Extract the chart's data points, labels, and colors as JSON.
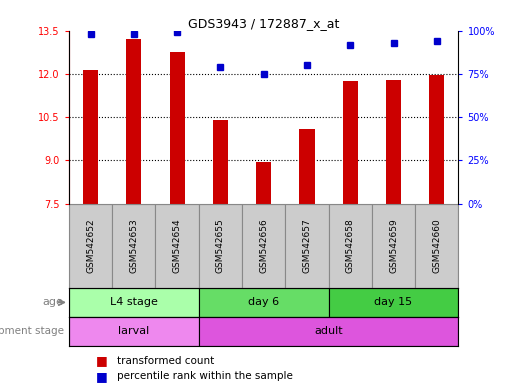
{
  "title": "GDS3943 / 172887_x_at",
  "samples": [
    "GSM542652",
    "GSM542653",
    "GSM542654",
    "GSM542655",
    "GSM542656",
    "GSM542657",
    "GSM542658",
    "GSM542659",
    "GSM542660"
  ],
  "transformed_count": [
    12.15,
    13.2,
    12.75,
    10.4,
    8.95,
    10.1,
    11.75,
    11.8,
    11.95
  ],
  "percentile_rank": [
    98,
    98,
    99,
    79,
    75,
    80,
    92,
    93,
    94
  ],
  "bar_color": "#cc0000",
  "dot_color": "#0000cc",
  "ylim_left": [
    7.5,
    13.5
  ],
  "ylim_right": [
    0,
    100
  ],
  "yticks_left": [
    7.5,
    9.0,
    10.5,
    12.0,
    13.5
  ],
  "yticks_right": [
    0,
    25,
    50,
    75,
    100
  ],
  "grid_values": [
    9.0,
    10.5,
    12.0
  ],
  "age_groups": [
    {
      "label": "L4 stage",
      "start": 0,
      "end": 3,
      "color": "#aaffaa"
    },
    {
      "label": "day 6",
      "start": 3,
      "end": 6,
      "color": "#66dd66"
    },
    {
      "label": "day 15",
      "start": 6,
      "end": 9,
      "color": "#44cc44"
    }
  ],
  "dev_groups": [
    {
      "label": "larval",
      "start": 0,
      "end": 3,
      "color": "#ee77ee"
    },
    {
      "label": "adult",
      "start": 3,
      "end": 9,
      "color": "#ee77ee"
    }
  ],
  "legend_bar_label": "transformed count",
  "legend_dot_label": "percentile rank within the sample",
  "age_label": "age",
  "dev_label": "development stage",
  "table_bg": "#cccccc",
  "table_border": "#888888"
}
